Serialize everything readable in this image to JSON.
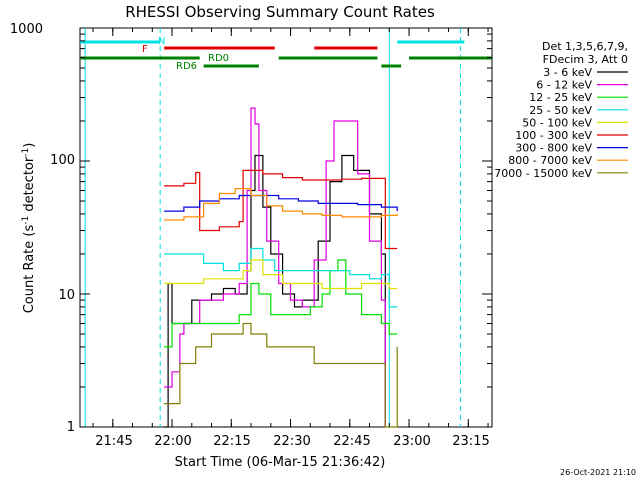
{
  "chart_data": {
    "type": "line",
    "title": "RHESSI Observing Summary Count Rates",
    "xlabel": "Start Time (06-Mar-15 21:36:42)",
    "ylabel": "Count Rate (s",
    "ylabel_sup1": "-1",
    "ylabel_mid": " detector",
    "ylabel_sup2": "-1",
    "ylabel_end": ")",
    "x_ticks": [
      "21:45",
      "22:00",
      "22:15",
      "22:30",
      "22:45",
      "23:00",
      "23:15"
    ],
    "y_ticks": [
      "1",
      "10",
      "100",
      "1000"
    ],
    "y_scale": "log",
    "ylim": [
      1,
      1000
    ],
    "xlim": [
      "21:36:42",
      "23:21:00"
    ],
    "legend": {
      "placement": "right",
      "header": [
        "Det 1,3,5,6,7,9,",
        "FDecim 3, Att 0"
      ],
      "entries": [
        {
          "label": "3 - 6 keV",
          "color": "#000000"
        },
        {
          "label": "6 - 12 keV",
          "color": "#e000e0"
        },
        {
          "label": "12 - 25 keV",
          "color": "#00e000"
        },
        {
          "label": "25 - 50 keV",
          "color": "#00e0e0"
        },
        {
          "label": "50 - 100 keV",
          "color": "#e0e000"
        },
        {
          "label": "100 - 300 keV",
          "color": "#e00000"
        },
        {
          "label": "300 - 800 keV",
          "color": "#0000e0"
        },
        {
          "label": "800 - 7000 keV",
          "color": "#ff8c00"
        },
        {
          "label": "7000 - 15000 keV",
          "color": "#808000"
        }
      ]
    },
    "annotations": {
      "N": "N",
      "F": "F",
      "RD0": "RD0",
      "RD6": "RD6"
    },
    "series": [
      {
        "name": "3 - 6 keV",
        "color": "#000000",
        "points": [
          [
            "21:58",
            1
          ],
          [
            "21:59",
            12
          ],
          [
            "22:00",
            6
          ],
          [
            "22:05",
            9
          ],
          [
            "22:10",
            10
          ],
          [
            "22:13",
            11
          ],
          [
            "22:16",
            10
          ],
          [
            "22:19",
            15
          ],
          [
            "22:20",
            60
          ],
          [
            "22:21",
            110
          ],
          [
            "22:23",
            45
          ],
          [
            "22:25",
            20
          ],
          [
            "22:28",
            10
          ],
          [
            "22:31",
            8
          ],
          [
            "22:33",
            9
          ],
          [
            "22:37",
            25
          ],
          [
            "22:40",
            70
          ],
          [
            "22:43",
            110
          ],
          [
            "22:46",
            85
          ],
          [
            "22:50",
            40
          ],
          [
            "22:53",
            20
          ],
          [
            "22:54",
            1
          ]
        ]
      },
      {
        "name": "6 - 12 keV",
        "color": "#e000e0",
        "points": [
          [
            "21:58",
            2
          ],
          [
            "22:00",
            2.6
          ],
          [
            "22:02",
            5
          ],
          [
            "22:03",
            6
          ],
          [
            "22:07",
            9
          ],
          [
            "22:13",
            10
          ],
          [
            "22:17",
            12
          ],
          [
            "22:19",
            60
          ],
          [
            "22:20",
            250
          ],
          [
            "22:21",
            190
          ],
          [
            "22:22",
            60
          ],
          [
            "22:24",
            25
          ],
          [
            "22:27",
            12
          ],
          [
            "22:30",
            9
          ],
          [
            "22:33",
            8
          ],
          [
            "22:36",
            18
          ],
          [
            "22:39",
            100
          ],
          [
            "22:41",
            200
          ],
          [
            "22:44",
            200
          ],
          [
            "22:47",
            80
          ],
          [
            "22:50",
            25
          ],
          [
            "22:53",
            9
          ],
          [
            "22:54",
            1
          ]
        ]
      },
      {
        "name": "12 - 25 keV",
        "color": "#00e000",
        "points": [
          [
            "21:58",
            4
          ],
          [
            "22:00",
            6
          ],
          [
            "22:06",
            6
          ],
          [
            "22:12",
            6
          ],
          [
            "22:17",
            7
          ],
          [
            "22:20",
            12
          ],
          [
            "22:22",
            10
          ],
          [
            "22:25",
            7
          ],
          [
            "22:30",
            7
          ],
          [
            "22:35",
            8
          ],
          [
            "22:38",
            10
          ],
          [
            "22:40",
            15
          ],
          [
            "22:42",
            18
          ],
          [
            "22:44",
            10
          ],
          [
            "22:48",
            7
          ],
          [
            "22:53",
            6
          ],
          [
            "22:55",
            5
          ],
          [
            "22:57",
            5
          ]
        ]
      },
      {
        "name": "25 - 50 keV",
        "color": "#00e0e0",
        "points": [
          [
            "21:58",
            20
          ],
          [
            "22:03",
            20
          ],
          [
            "22:08",
            17
          ],
          [
            "22:13",
            15
          ],
          [
            "22:17",
            17
          ],
          [
            "22:20",
            22
          ],
          [
            "22:23",
            18
          ],
          [
            "22:26",
            15
          ],
          [
            "22:30",
            15
          ],
          [
            "22:35",
            15
          ],
          [
            "22:40",
            15
          ],
          [
            "22:45",
            14
          ],
          [
            "22:50",
            13
          ],
          [
            "22:53",
            14
          ],
          [
            "22:55",
            8
          ],
          [
            "22:57",
            8
          ]
        ]
      },
      {
        "name": "50 - 100 keV",
        "color": "#e0e000",
        "points": [
          [
            "21:58",
            12
          ],
          [
            "22:03",
            12
          ],
          [
            "22:08",
            13
          ],
          [
            "22:12",
            13
          ],
          [
            "22:18",
            15
          ],
          [
            "22:20",
            18
          ],
          [
            "22:23",
            14
          ],
          [
            "22:28",
            12
          ],
          [
            "22:33",
            12
          ],
          [
            "22:38",
            11
          ],
          [
            "22:43",
            11
          ],
          [
            "22:48",
            12
          ],
          [
            "22:53",
            12
          ],
          [
            "22:55",
            11
          ],
          [
            "22:57",
            11
          ]
        ]
      },
      {
        "name": "100 - 300 keV",
        "color": "#e00000",
        "points": [
          [
            "21:58",
            65
          ],
          [
            "22:03",
            68
          ],
          [
            "22:06",
            82
          ],
          [
            "22:07",
            30
          ],
          [
            "22:12",
            32
          ],
          [
            "22:17",
            35
          ],
          [
            "22:18",
            85
          ],
          [
            "22:23",
            80
          ],
          [
            "22:28",
            75
          ],
          [
            "22:33",
            72
          ],
          [
            "22:38",
            72
          ],
          [
            "22:43",
            73
          ],
          [
            "22:48",
            74
          ],
          [
            "22:53",
            74
          ],
          [
            "22:54",
            22
          ],
          [
            "22:57",
            22
          ]
        ]
      },
      {
        "name": "300 - 800 keV",
        "color": "#0000e0",
        "points": [
          [
            "21:58",
            42
          ],
          [
            "22:03",
            45
          ],
          [
            "22:07",
            50
          ],
          [
            "22:12",
            52
          ],
          [
            "22:17",
            55
          ],
          [
            "22:22",
            55
          ],
          [
            "22:27",
            52
          ],
          [
            "22:32",
            50
          ],
          [
            "22:37",
            48
          ],
          [
            "22:42",
            48
          ],
          [
            "22:47",
            47
          ],
          [
            "22:53",
            45
          ],
          [
            "22:57",
            42
          ]
        ]
      },
      {
        "name": "800 - 7000 keV",
        "color": "#ff8c00",
        "points": [
          [
            "21:58",
            36
          ],
          [
            "22:03",
            38
          ],
          [
            "22:08",
            48
          ],
          [
            "22:12",
            57
          ],
          [
            "22:16",
            62
          ],
          [
            "22:20",
            55
          ],
          [
            "22:24",
            46
          ],
          [
            "22:28",
            42
          ],
          [
            "22:33",
            40
          ],
          [
            "22:38",
            39
          ],
          [
            "22:43",
            38
          ],
          [
            "22:48",
            38
          ],
          [
            "22:53",
            39
          ],
          [
            "22:57",
            40
          ]
        ]
      },
      {
        "name": "7000 - 15000 keV",
        "color": "#808000",
        "points": [
          [
            "21:58",
            1.5
          ],
          [
            "22:00",
            1.5
          ],
          [
            "22:02",
            3
          ],
          [
            "22:06",
            4
          ],
          [
            "22:10",
            5
          ],
          [
            "22:14",
            5
          ],
          [
            "22:18",
            6
          ],
          [
            "22:20",
            5
          ],
          [
            "22:24",
            4
          ],
          [
            "22:28",
            4
          ],
          [
            "22:32",
            4
          ],
          [
            "22:36",
            3
          ],
          [
            "22:42",
            3
          ],
          [
            "22:48",
            3
          ],
          [
            "22:53",
            3
          ],
          [
            "22:54",
            1
          ],
          [
            "22:57",
            4
          ]
        ]
      }
    ],
    "status_bars": [
      {
        "name": "N",
        "color": "#00e0e0",
        "segments": [
          [
            "21:36:42",
            "21:57:00"
          ],
          [
            "22:57:00",
            "23:14:00"
          ]
        ]
      },
      {
        "name": "F",
        "color": "#e00000",
        "segments": [
          [
            "21:58:00",
            "22:26:00"
          ],
          [
            "22:36:00",
            "22:52:00"
          ]
        ]
      },
      {
        "name": "RD0",
        "color": "#008000",
        "segments": [
          [
            "21:36:42",
            "22:07:00"
          ],
          [
            "22:27:00",
            "22:52:00"
          ],
          [
            "23:00:00",
            "23:21:00"
          ]
        ]
      },
      {
        "name": "RD6",
        "color": "#008000",
        "segments": [
          [
            "22:08:00",
            "22:22:00"
          ],
          [
            "22:53:00",
            "22:58:00"
          ]
        ]
      }
    ],
    "vlines": [
      {
        "time": "21:38:00",
        "color": "#00e0e0",
        "style": "solid"
      },
      {
        "time": "21:57:00",
        "color": "#00e0e0",
        "style": "dashed"
      },
      {
        "time": "22:55:00",
        "color": "#00e0e0",
        "style": "solid"
      },
      {
        "time": "23:13:00",
        "color": "#00e0e0",
        "style": "dashed"
      }
    ]
  },
  "footer": {
    "timestamp": "26-Oct-2021 21:10"
  }
}
